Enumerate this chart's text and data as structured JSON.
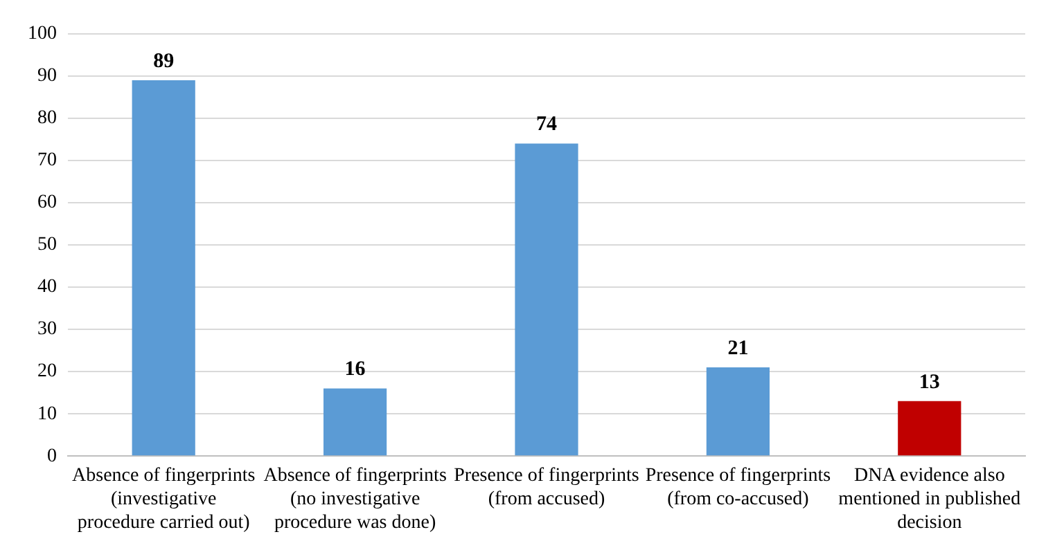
{
  "chart_data": {
    "type": "bar",
    "categories": [
      "Absence of fingerprints (investigative procedure carried out)",
      "Absence of fingerprints (no investigative procedure was done)",
      "Presence of fingerprints (from accused)",
      "Presence of fingerprints (from co-accused)",
      "DNA evidence also mentioned in published decision"
    ],
    "values": [
      89,
      16,
      74,
      21,
      13
    ],
    "colors": [
      "#5b9bd5",
      "#5b9bd5",
      "#5b9bd5",
      "#5b9bd5",
      "#c00000"
    ],
    "ylim": [
      0,
      100
    ],
    "yticks": [
      0,
      10,
      20,
      30,
      40,
      50,
      60,
      70,
      80,
      90,
      100
    ],
    "grid": "y",
    "data_labels": true,
    "legend": false
  }
}
